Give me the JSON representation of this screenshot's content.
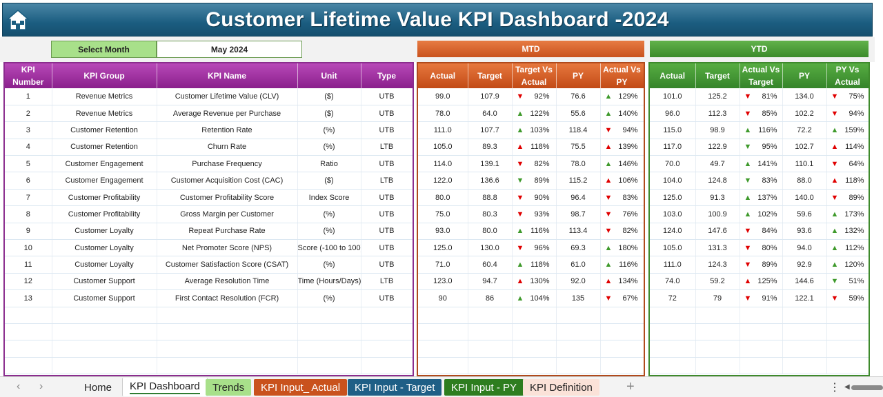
{
  "title": "Customer Lifetime Value KPI Dashboard -2024",
  "select_month": {
    "label": "Select Month",
    "value": "May 2024"
  },
  "mtd_label": "MTD",
  "ytd_label": "YTD",
  "left_headers": [
    "KPI Number",
    "KPI Group",
    "KPI Name",
    "Unit",
    "Type"
  ],
  "mtd_headers": [
    "Actual",
    "Target",
    "Target Vs Actual",
    "PY",
    "Actual Vs PY"
  ],
  "ytd_headers": [
    "Actual",
    "Target",
    "Actual Vs Target",
    "PY",
    "PY Vs Actual"
  ],
  "colors": {
    "up": "#3f9a2c",
    "down": "#e00000",
    "title_bar": "#1b5d80",
    "mtd": "#c9521d",
    "ytd": "#3c8b2b",
    "kpi": "#8a1f8c"
  },
  "kpis": [
    {
      "num": "1",
      "group": "Revenue Metrics",
      "name": "Customer Lifetime Value (CLV)",
      "unit": "($)",
      "type": "UTB",
      "mtd": {
        "actual": "99.0",
        "target": "107.9",
        "tva": {
          "dir": "down",
          "pct": "92%"
        },
        "py": "76.6",
        "avp": {
          "dir": "up",
          "pct": "129%"
        }
      },
      "ytd": {
        "actual": "101.0",
        "target": "125.2",
        "avt": {
          "dir": "down",
          "pct": "81%"
        },
        "py": "134.0",
        "pva": {
          "dir": "down",
          "pct": "75%"
        }
      }
    },
    {
      "num": "2",
      "group": "Revenue Metrics",
      "name": "Average Revenue per Purchase",
      "unit": "($)",
      "type": "UTB",
      "mtd": {
        "actual": "78.0",
        "target": "64.0",
        "tva": {
          "dir": "up",
          "pct": "122%"
        },
        "py": "55.6",
        "avp": {
          "dir": "up",
          "pct": "140%"
        }
      },
      "ytd": {
        "actual": "96.0",
        "target": "112.3",
        "avt": {
          "dir": "down",
          "pct": "85%"
        },
        "py": "102.2",
        "pva": {
          "dir": "down",
          "pct": "94%"
        }
      }
    },
    {
      "num": "3",
      "group": "Customer Retention",
      "name": "Retention Rate",
      "unit": "(%)",
      "type": "UTB",
      "mtd": {
        "actual": "111.0",
        "target": "107.7",
        "tva": {
          "dir": "up",
          "pct": "103%"
        },
        "py": "118.4",
        "avp": {
          "dir": "down",
          "pct": "94%"
        }
      },
      "ytd": {
        "actual": "115.0",
        "target": "98.9",
        "avt": {
          "dir": "up",
          "pct": "116%"
        },
        "py": "72.2",
        "pva": {
          "dir": "up",
          "pct": "159%"
        }
      }
    },
    {
      "num": "4",
      "group": "Customer Retention",
      "name": "Churn Rate",
      "unit": "(%)",
      "type": "LTB",
      "mtd": {
        "actual": "105.0",
        "target": "89.3",
        "tva": {
          "dir": "upred",
          "pct": "118%"
        },
        "py": "75.5",
        "avp": {
          "dir": "upred",
          "pct": "139%"
        }
      },
      "ytd": {
        "actual": "117.0",
        "target": "122.9",
        "avt": {
          "dir": "downgreen",
          "pct": "95%"
        },
        "py": "102.7",
        "pva": {
          "dir": "upred",
          "pct": "114%"
        }
      }
    },
    {
      "num": "5",
      "group": "Customer Engagement",
      "name": "Purchase Frequency",
      "unit": "Ratio",
      "type": "UTB",
      "mtd": {
        "actual": "114.0",
        "target": "139.1",
        "tva": {
          "dir": "down",
          "pct": "82%"
        },
        "py": "78.0",
        "avp": {
          "dir": "up",
          "pct": "146%"
        }
      },
      "ytd": {
        "actual": "70.0",
        "target": "49.7",
        "avt": {
          "dir": "up",
          "pct": "141%"
        },
        "py": "110.1",
        "pva": {
          "dir": "down",
          "pct": "64%"
        }
      }
    },
    {
      "num": "6",
      "group": "Customer Engagement",
      "name": "Customer Acquisition Cost (CAC)",
      "unit": "($)",
      "type": "LTB",
      "mtd": {
        "actual": "122.0",
        "target": "136.6",
        "tva": {
          "dir": "downgreen",
          "pct": "89%"
        },
        "py": "115.2",
        "avp": {
          "dir": "upred",
          "pct": "106%"
        }
      },
      "ytd": {
        "actual": "104.0",
        "target": "124.8",
        "avt": {
          "dir": "downgreen",
          "pct": "83%"
        },
        "py": "88.0",
        "pva": {
          "dir": "upred",
          "pct": "118%"
        }
      }
    },
    {
      "num": "7",
      "group": "Customer Profitability",
      "name": "Customer Profitability Score",
      "unit": "Index Score",
      "type": "UTB",
      "mtd": {
        "actual": "80.0",
        "target": "88.8",
        "tva": {
          "dir": "down",
          "pct": "90%"
        },
        "py": "96.4",
        "avp": {
          "dir": "down",
          "pct": "83%"
        }
      },
      "ytd": {
        "actual": "125.0",
        "target": "91.3",
        "avt": {
          "dir": "up",
          "pct": "137%"
        },
        "py": "140.0",
        "pva": {
          "dir": "down",
          "pct": "89%"
        }
      }
    },
    {
      "num": "8",
      "group": "Customer Profitability",
      "name": "Gross Margin per Customer",
      "unit": "(%)",
      "type": "UTB",
      "mtd": {
        "actual": "75.0",
        "target": "80.3",
        "tva": {
          "dir": "down",
          "pct": "93%"
        },
        "py": "98.7",
        "avp": {
          "dir": "down",
          "pct": "76%"
        }
      },
      "ytd": {
        "actual": "103.0",
        "target": "100.9",
        "avt": {
          "dir": "up",
          "pct": "102%"
        },
        "py": "59.6",
        "pva": {
          "dir": "up",
          "pct": "173%"
        }
      }
    },
    {
      "num": "9",
      "group": "Customer Loyalty",
      "name": "Repeat Purchase Rate",
      "unit": "(%)",
      "type": "UTB",
      "mtd": {
        "actual": "93.0",
        "target": "80.0",
        "tva": {
          "dir": "up",
          "pct": "116%"
        },
        "py": "113.4",
        "avp": {
          "dir": "down",
          "pct": "82%"
        }
      },
      "ytd": {
        "actual": "124.0",
        "target": "147.6",
        "avt": {
          "dir": "down",
          "pct": "84%"
        },
        "py": "93.6",
        "pva": {
          "dir": "up",
          "pct": "132%"
        }
      }
    },
    {
      "num": "10",
      "group": "Customer Loyalty",
      "name": "Net Promoter Score (NPS)",
      "unit": "Score (-100 to 100)",
      "type": "UTB",
      "mtd": {
        "actual": "125.0",
        "target": "130.0",
        "tva": {
          "dir": "down",
          "pct": "96%"
        },
        "py": "69.3",
        "avp": {
          "dir": "up",
          "pct": "180%"
        }
      },
      "ytd": {
        "actual": "105.0",
        "target": "131.3",
        "avt": {
          "dir": "down",
          "pct": "80%"
        },
        "py": "94.0",
        "pva": {
          "dir": "up",
          "pct": "112%"
        }
      }
    },
    {
      "num": "11",
      "group": "Customer Loyalty",
      "name": "Customer Satisfaction Score (CSAT)",
      "unit": "(%)",
      "type": "UTB",
      "mtd": {
        "actual": "71.0",
        "target": "60.4",
        "tva": {
          "dir": "up",
          "pct": "118%"
        },
        "py": "61.0",
        "avp": {
          "dir": "up",
          "pct": "116%"
        }
      },
      "ytd": {
        "actual": "111.0",
        "target": "124.3",
        "avt": {
          "dir": "down",
          "pct": "89%"
        },
        "py": "92.9",
        "pva": {
          "dir": "up",
          "pct": "120%"
        }
      }
    },
    {
      "num": "12",
      "group": "Customer Support",
      "name": "Average Resolution Time",
      "unit": "Time (Hours/Days)",
      "type": "LTB",
      "mtd": {
        "actual": "123.0",
        "target": "94.7",
        "tva": {
          "dir": "upred",
          "pct": "130%"
        },
        "py": "92.0",
        "avp": {
          "dir": "upred",
          "pct": "134%"
        }
      },
      "ytd": {
        "actual": "74.0",
        "target": "59.2",
        "avt": {
          "dir": "upred",
          "pct": "125%"
        },
        "py": "144.6",
        "pva": {
          "dir": "downgreen",
          "pct": "51%"
        }
      }
    },
    {
      "num": "13",
      "group": "Customer Support",
      "name": "First Contact Resolution (FCR)",
      "unit": "(%)",
      "type": "UTB",
      "mtd": {
        "actual": "90",
        "target": "86",
        "tva": {
          "dir": "up",
          "pct": "104%"
        },
        "py": "135",
        "avp": {
          "dir": "down",
          "pct": "67%"
        }
      },
      "ytd": {
        "actual": "72",
        "target": "79",
        "avt": {
          "dir": "down",
          "pct": "91%"
        },
        "py": "122.1",
        "pva": {
          "dir": "down",
          "pct": "59%"
        }
      }
    }
  ],
  "tabs": [
    "Home",
    "KPI Dashboard",
    "Trends",
    "KPI Input_ Actual",
    "KPI Input - Target",
    "KPI Input - PY",
    "KPI Definition"
  ],
  "add_tab": "+"
}
